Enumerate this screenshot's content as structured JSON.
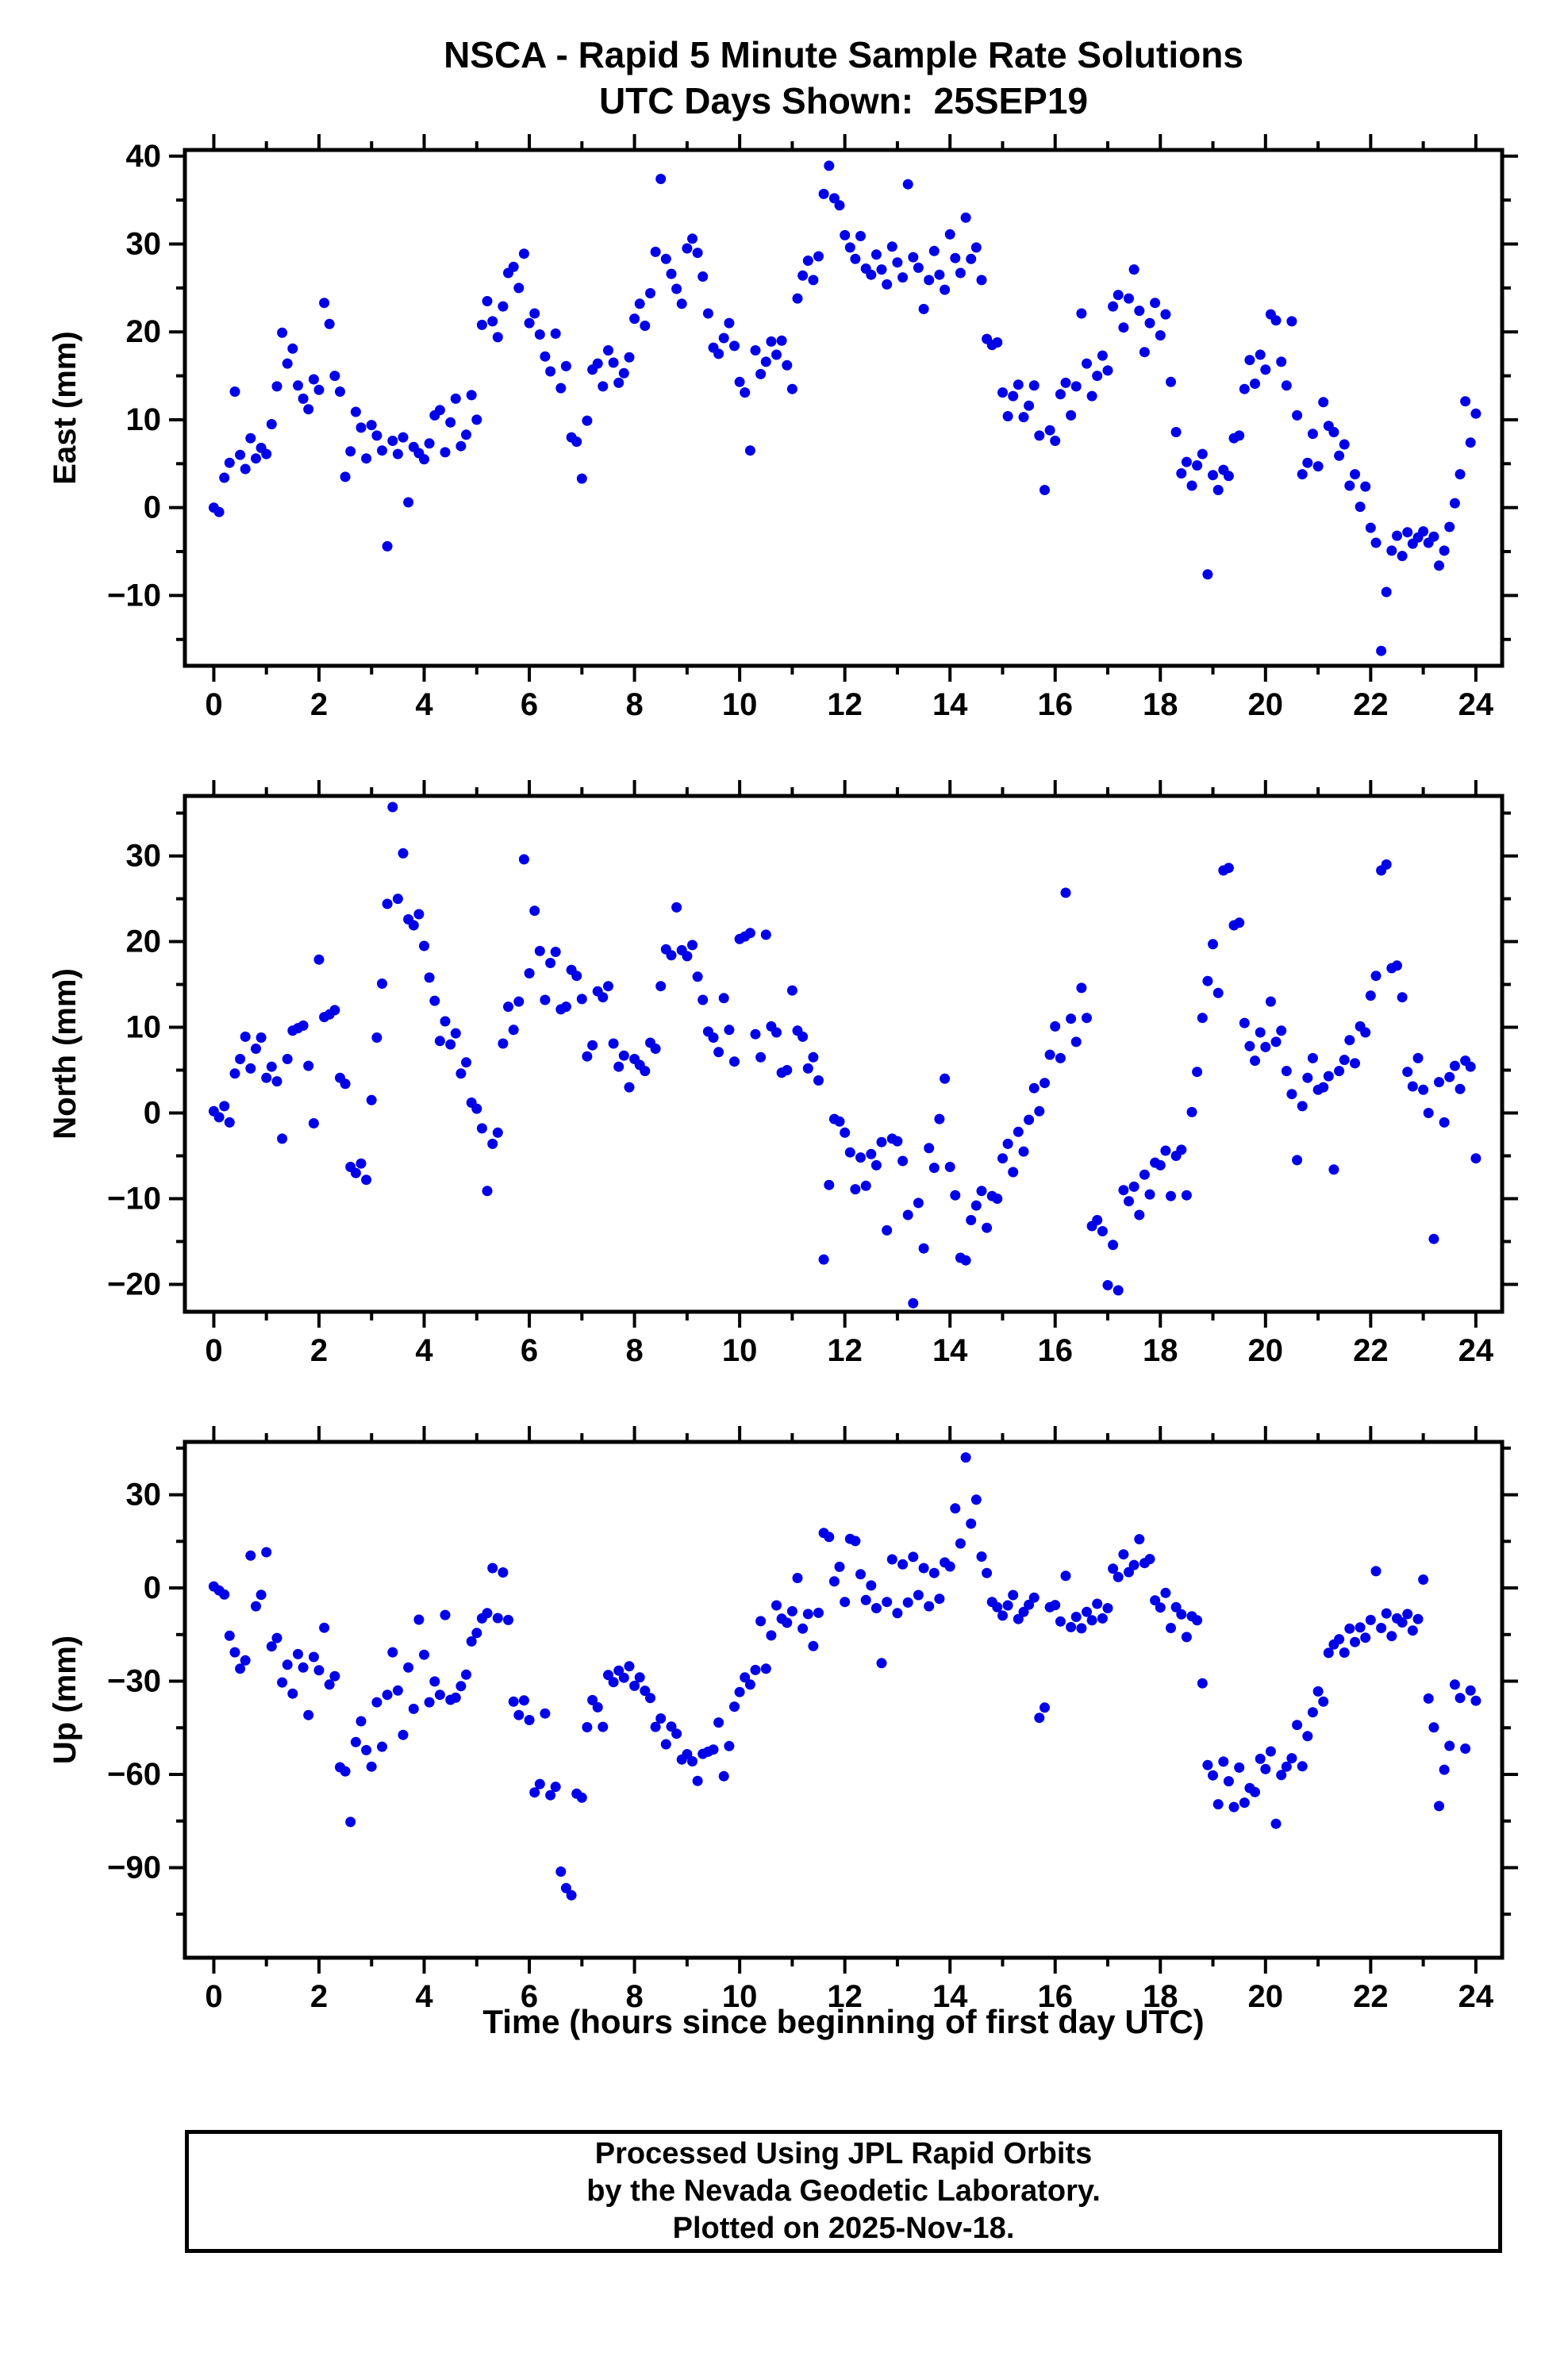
{
  "title": {
    "line1": "NSCA - Rapid 5 Minute Sample Rate Solutions",
    "line2": "UTC Days Shown:  25SEP19"
  },
  "xlabel": "Time (hours since beginning of first day UTC)",
  "footer": {
    "line1": "Processed Using JPL Rapid Orbits",
    "line2": "by the Nevada Geodetic Laboratory.",
    "line3": "Plotted on 2025-Nov-18."
  },
  "style": {
    "dot_color": "#0000e8",
    "axis_color": "#000000"
  },
  "axes": {
    "xlim": [
      -0.55,
      24.5
    ],
    "xticks": [
      0,
      2,
      4,
      6,
      8,
      10,
      12,
      14,
      16,
      18,
      20,
      22,
      24
    ],
    "xminor_step": 1
  },
  "chart_data": [
    {
      "type": "scatter",
      "name": "east",
      "ylabel": "East (mm)",
      "ylim": [
        -18,
        40.7
      ],
      "yticks": [
        -10,
        0,
        10,
        20,
        30,
        40
      ],
      "yminor_step": 5,
      "x_start": 0,
      "x_step": 0.1,
      "values": [
        0.0,
        -0.5,
        3.4,
        5.1,
        13.2,
        6.0,
        4.4,
        7.9,
        5.6,
        6.8,
        6.1,
        9.5,
        13.8,
        19.9,
        16.4,
        18.1,
        13.9,
        12.4,
        11.2,
        14.6,
        13.4,
        23.3,
        20.9,
        15.0,
        13.2,
        3.5,
        6.4,
        10.9,
        9.1,
        5.6,
        9.4,
        8.2,
        6.5,
        -4.4,
        7.6,
        6.1,
        8.0,
        0.6,
        6.9,
        6.2,
        5.5,
        7.3,
        10.5,
        11.1,
        6.3,
        9.7,
        12.4,
        7.0,
        8.3,
        12.8,
        10.0,
        20.8,
        23.5,
        21.2,
        19.4,
        22.9,
        26.7,
        27.4,
        25.0,
        28.9,
        21.0,
        22.1,
        19.7,
        17.2,
        15.5,
        19.8,
        13.6,
        16.1,
        8.0,
        7.5,
        3.3,
        9.9,
        15.7,
        16.4,
        13.8,
        17.9,
        16.5,
        14.2,
        15.3,
        17.1,
        21.5,
        23.2,
        20.7,
        24.4,
        29.1,
        37.4,
        28.3,
        26.6,
        24.9,
        23.2,
        29.5,
        30.6,
        29.0,
        26.3,
        22.1,
        18.2,
        17.5,
        19.3,
        21.0,
        18.4,
        14.3,
        13.1,
        6.5,
        17.9,
        15.2,
        16.6,
        18.9,
        17.4,
        19.0,
        16.2,
        13.5,
        23.8,
        26.4,
        28.1,
        25.9,
        28.6,
        35.7,
        38.9,
        35.2,
        34.4,
        31.0,
        29.6,
        28.3,
        30.9,
        27.2,
        26.5,
        28.8,
        27.1,
        25.4,
        29.7,
        27.9,
        26.2,
        36.8,
        28.5,
        27.3,
        22.6,
        25.9,
        29.2,
        26.5,
        24.8,
        31.1,
        28.4,
        26.7,
        33.0,
        28.3,
        29.6,
        25.9,
        19.2,
        18.5,
        18.8,
        13.1,
        10.4,
        12.7,
        14.0,
        10.3,
        11.6,
        13.9,
        8.2,
        2.0,
        8.8,
        7.6,
        12.9,
        14.2,
        10.5,
        13.8,
        22.1,
        16.4,
        12.7,
        15.0,
        17.3,
        15.6,
        22.9,
        24.2,
        20.5,
        23.8,
        27.1,
        22.4,
        17.7,
        21.0,
        23.3,
        19.6,
        22.0,
        14.3,
        8.6,
        3.9,
        5.2,
        2.5,
        4.8,
        6.1,
        -7.6,
        3.7,
        2.0,
        4.3,
        3.6,
        7.9,
        8.2,
        13.5,
        16.8,
        14.1,
        17.4,
        15.7,
        22.0,
        21.3,
        16.6,
        13.9,
        21.2,
        10.5,
        3.8,
        5.1,
        8.4,
        4.7,
        12.0,
        9.3,
        8.6,
        5.9,
        7.2,
        2.5,
        3.8,
        0.1,
        2.4,
        -2.3,
        -4.0,
        -16.3,
        -9.6,
        -4.9,
        -3.2,
        -5.5,
        -2.8,
        -4.1,
        -3.4,
        -2.7,
        -4.0,
        -3.3,
        -6.6,
        -4.9,
        -2.2,
        0.5,
        3.8,
        12.1,
        7.4,
        10.7
      ]
    },
    {
      "type": "scatter",
      "name": "north",
      "ylabel": "North (mm)",
      "ylim": [
        -23.2,
        37
      ],
      "yticks": [
        -20,
        -10,
        0,
        10,
        20,
        30
      ],
      "yminor_step": 5,
      "x_start": 0,
      "x_step": 0.1,
      "values": [
        0.2,
        -0.5,
        0.8,
        -1.1,
        4.6,
        6.3,
        8.9,
        5.2,
        7.5,
        8.8,
        4.1,
        5.4,
        3.7,
        -3.0,
        6.3,
        9.6,
        9.9,
        10.2,
        5.5,
        -1.2,
        17.9,
        11.2,
        11.5,
        12.0,
        4.1,
        3.4,
        -6.3,
        -7.0,
        -5.9,
        -7.8,
        1.5,
        8.8,
        15.1,
        24.4,
        35.7,
        25.0,
        30.3,
        22.6,
        21.9,
        23.2,
        19.5,
        15.8,
        13.1,
        8.4,
        10.7,
        8.0,
        9.3,
        4.6,
        5.9,
        1.2,
        0.5,
        -1.8,
        -9.1,
        -3.6,
        -2.3,
        8.1,
        12.4,
        9.7,
        13.0,
        29.6,
        16.3,
        23.6,
        18.9,
        13.2,
        17.5,
        18.8,
        12.1,
        12.4,
        16.7,
        16.0,
        13.3,
        6.6,
        7.9,
        14.2,
        13.5,
        14.8,
        8.1,
        5.4,
        6.7,
        3.0,
        6.3,
        5.6,
        4.9,
        8.2,
        7.5,
        14.8,
        19.1,
        18.4,
        24.0,
        19.0,
        18.3,
        19.6,
        15.9,
        13.2,
        9.5,
        8.8,
        7.1,
        13.4,
        9.7,
        6.0,
        20.3,
        20.6,
        21.0,
        9.2,
        6.5,
        20.8,
        10.1,
        9.4,
        4.7,
        5.0,
        14.3,
        9.6,
        8.9,
        5.2,
        6.5,
        3.8,
        -17.1,
        -8.4,
        -0.7,
        -1.0,
        -2.3,
        -4.6,
        -8.9,
        -5.2,
        -8.5,
        -4.8,
        -6.1,
        -3.4,
        -13.7,
        -3.0,
        -3.3,
        -5.6,
        -11.9,
        -22.2,
        -10.5,
        -15.8,
        -4.1,
        -6.4,
        -0.7,
        4.0,
        -6.3,
        -9.6,
        -16.9,
        -17.2,
        -12.5,
        -10.8,
        -9.1,
        -13.4,
        -9.7,
        -10.0,
        -5.3,
        -3.6,
        -6.9,
        -2.2,
        -4.5,
        -0.8,
        2.9,
        0.2,
        3.5,
        6.8,
        10.1,
        6.4,
        25.7,
        11.0,
        8.3,
        14.6,
        11.1,
        -13.2,
        -12.5,
        -13.8,
        -20.1,
        -15.4,
        -20.7,
        -9.0,
        -10.3,
        -8.6,
        -11.9,
        -7.2,
        -9.5,
        -5.8,
        -6.1,
        -4.4,
        -9.7,
        -5.0,
        -4.3,
        -9.6,
        0.1,
        4.8,
        11.1,
        15.4,
        19.7,
        14.0,
        28.3,
        28.6,
        21.9,
        22.2,
        10.5,
        7.8,
        6.1,
        9.4,
        7.7,
        13.0,
        8.3,
        9.6,
        4.9,
        2.2,
        -5.5,
        0.8,
        4.1,
        6.4,
        2.7,
        3.0,
        4.3,
        -6.6,
        4.9,
        6.2,
        8.5,
        5.8,
        10.1,
        9.4,
        13.7,
        16.0,
        28.3,
        29.0,
        16.9,
        17.2,
        13.5,
        4.8,
        3.1,
        6.4,
        2.7,
        0.0,
        -14.7,
        3.6,
        -1.1,
        4.2,
        5.5,
        2.8,
        6.1,
        5.4,
        -5.3
      ]
    },
    {
      "type": "scatter",
      "name": "up",
      "ylabel": "Up (mm)",
      "ylim": [
        -119,
        47
      ],
      "yticks": [
        -90,
        -60,
        -30,
        0,
        30
      ],
      "yminor_step": 15,
      "x_start": 0,
      "x_step": 0.1,
      "values": [
        0.5,
        -0.8,
        -2.1,
        -15.4,
        -20.7,
        -26.0,
        -23.3,
        10.4,
        -5.9,
        -2.2,
        11.5,
        -18.8,
        -16.1,
        -30.4,
        -24.7,
        -34.0,
        -21.3,
        -25.6,
        -40.9,
        -22.2,
        -26.5,
        -12.8,
        -31.1,
        -28.4,
        -57.7,
        -59.0,
        -75.3,
        -49.6,
        -42.9,
        -52.2,
        -57.5,
        -36.8,
        -51.1,
        -34.4,
        -20.7,
        -33.0,
        -47.3,
        -25.6,
        -38.9,
        -10.2,
        -21.5,
        -36.8,
        -30.1,
        -34.4,
        -8.7,
        -36.0,
        -35.3,
        -31.6,
        -27.9,
        -17.2,
        -14.5,
        -9.8,
        -8.1,
        6.4,
        -9.7,
        5.0,
        -10.3,
        -36.6,
        -40.9,
        -36.2,
        -42.5,
        -65.8,
        -63.1,
        -40.4,
        -66.7,
        -64.0,
        -91.3,
        -96.6,
        -98.9,
        -66.2,
        -67.5,
        -44.8,
        -36.1,
        -38.4,
        -44.7,
        -28.0,
        -30.3,
        -26.6,
        -28.9,
        -25.2,
        -31.5,
        -28.8,
        -33.1,
        -35.4,
        -44.7,
        -42.0,
        -50.3,
        -44.6,
        -46.9,
        -55.2,
        -53.5,
        -55.8,
        -62.1,
        -53.4,
        -52.7,
        -52.0,
        -43.3,
        -60.6,
        -50.9,
        -38.2,
        -33.5,
        -28.8,
        -31.1,
        -26.4,
        -10.7,
        -26.0,
        -15.3,
        -5.6,
        -9.9,
        -11.2,
        -7.5,
        3.2,
        -13.1,
        -8.4,
        -18.7,
        -8.0,
        17.7,
        16.4,
        2.1,
        6.8,
        -4.5,
        15.8,
        15.1,
        4.4,
        -3.9,
        0.8,
        -6.5,
        -24.2,
        -4.5,
        9.2,
        -8.1,
        7.6,
        -4.7,
        10.0,
        -2.3,
        6.4,
        -5.9,
        4.8,
        -3.5,
        8.2,
        6.9,
        25.6,
        14.3,
        42.0,
        20.7,
        28.4,
        10.1,
        4.8,
        -4.5,
        -6.2,
        -8.9,
        -5.6,
        -2.3,
        -10.0,
        -7.7,
        -5.4,
        -3.1,
        -41.8,
        -38.5,
        -6.2,
        -5.5,
        -10.8,
        3.9,
        -12.6,
        -9.3,
        -13.0,
        -7.7,
        -10.4,
        -5.1,
        -9.8,
        -6.5,
        6.2,
        3.5,
        10.8,
        5.1,
        7.4,
        15.7,
        8.0,
        9.3,
        -4.0,
        -6.3,
        -1.6,
        -12.9,
        -6.2,
        -8.5,
        -15.8,
        -9.1,
        -10.4,
        -30.7,
        -57.0,
        -60.3,
        -69.6,
        -55.9,
        -62.2,
        -70.5,
        -57.8,
        -69.1,
        -64.4,
        -65.7,
        -55.0,
        -58.3,
        -52.6,
        -75.9,
        -60.2,
        -57.5,
        -54.8,
        -44.1,
        -57.4,
        -47.7,
        -40.0,
        -33.3,
        -36.6,
        -20.9,
        -18.2,
        -16.5,
        -20.8,
        -13.1,
        -17.4,
        -12.7,
        -16.0,
        -10.3,
        5.4,
        -12.9,
        -8.2,
        -15.5,
        -9.8,
        -11.1,
        -8.4,
        -13.7,
        -10.0,
        2.7,
        -35.6,
        -44.9,
        -70.2,
        -58.5,
        -50.8,
        -31.1,
        -35.4,
        -51.7,
        -33.0,
        -36.3
      ]
    }
  ]
}
